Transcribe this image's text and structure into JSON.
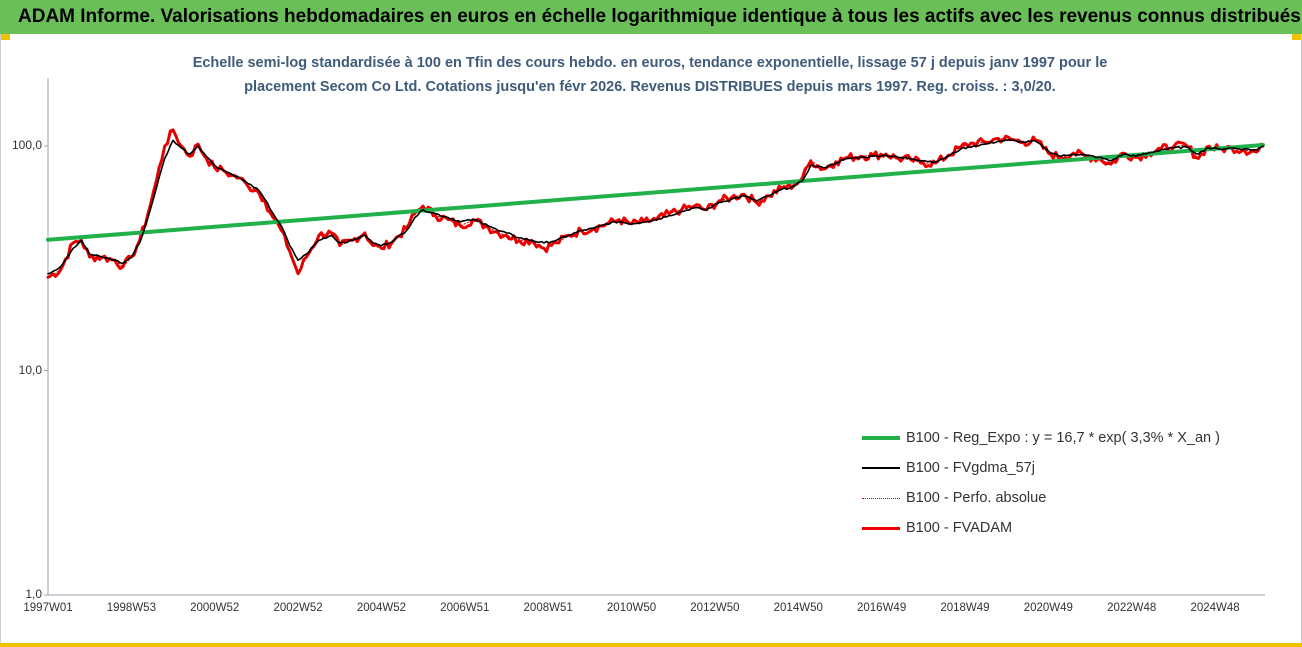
{
  "banner": {
    "title": "ADAM Informe. Valorisations hebdomadaires en euros en échelle logarithmique identique à tous les actifs avec les revenus connus distribués"
  },
  "chart_data": {
    "type": "line",
    "title_line1": "Echelle semi-log standardisée à 100 en Tfin des cours hebdo. en euros, tendance exponentielle, lissage 57 j depuis janv 1997 pour le",
    "title_line2": "placement Secom Co Ltd. Cotations jusqu'en févr 2026. Revenus DISTRIBUES depuis mars 1997. Reg. croiss. : 3,0/20.",
    "y_scale": "log",
    "ylim": [
      1,
      100
    ],
    "y_tick_labels": [
      "100,0",
      "10,0",
      "1,0"
    ],
    "y_tick_values": [
      100,
      10,
      1
    ],
    "x_range": [
      1997.0,
      2026.15
    ],
    "x_tick_labels": [
      "1997W01",
      "1998W53",
      "2000W52",
      "2002W52",
      "2004W52",
      "2006W51",
      "2008W51",
      "2010W50",
      "2012W50",
      "2014W50",
      "2016W49",
      "2018W49",
      "2020W49",
      "2022W48",
      "2024W48"
    ],
    "x_tick_values": [
      1997.0,
      1999.0,
      2001.0,
      2003.0,
      2005.0,
      2007.0,
      2009.0,
      2011.0,
      2013.0,
      2015.0,
      2017.0,
      2019.0,
      2021.0,
      2023.0,
      2025.0
    ],
    "legend_position": "bottom-right",
    "grid": false,
    "series": [
      {
        "name": "B100 - Reg_Expo : y = 16,7 * exp( 3,3% *  X_an )",
        "color": "#22b04b",
        "style": "solid",
        "x": [
          1997.0,
          2026.15
        ],
        "values": [
          38.2,
          101.0
        ]
      },
      {
        "name": "B100 - FVgdma_57j",
        "color": "#000000",
        "style": "solid",
        "x": [
          1997.0,
          1997.3,
          1997.6,
          1997.8,
          1998.0,
          1998.3,
          1998.6,
          1998.8,
          1999.0,
          1999.2,
          1999.4,
          1999.6,
          1999.8,
          2000.0,
          2000.2,
          2000.4,
          2000.6,
          2000.8,
          2001.0,
          2001.2,
          2001.4,
          2001.6,
          2001.8,
          2002.0,
          2002.2,
          2002.4,
          2002.6,
          2002.8,
          2003.0,
          2003.2,
          2003.5,
          2003.8,
          2004.0,
          2004.3,
          2004.6,
          2004.8,
          2005.0,
          2005.3,
          2005.6,
          2005.8,
          2006.0,
          2006.3,
          2006.6,
          2006.9,
          2007.2,
          2007.5,
          2007.8,
          2008.0,
          2008.3,
          2008.6,
          2008.9,
          2009.2,
          2009.5,
          2009.8,
          2010.1,
          2010.4,
          2010.7,
          2011.0,
          2011.3,
          2011.6,
          2011.9,
          2012.2,
          2012.5,
          2012.8,
          2013.1,
          2013.4,
          2013.7,
          2014.0,
          2014.3,
          2014.6,
          2014.9,
          2015.1,
          2015.3,
          2015.6,
          2015.9,
          2016.2,
          2016.5,
          2016.8,
          2017.1,
          2017.4,
          2017.7,
          2018.0,
          2018.3,
          2018.6,
          2018.9,
          2019.2,
          2019.5,
          2019.8,
          2020.1,
          2020.4,
          2020.7,
          2021.0,
          2021.3,
          2021.6,
          2021.9,
          2022.2,
          2022.5,
          2022.8,
          2023.1,
          2023.4,
          2023.7,
          2024.0,
          2024.3,
          2024.6,
          2024.8,
          2025.1,
          2025.4,
          2025.7,
          2026.0,
          2026.15
        ],
        "values": [
          27.0,
          29.0,
          35.0,
          38.0,
          33.0,
          32.0,
          31.0,
          30.0,
          32.0,
          37.0,
          48.0,
          65.0,
          88.0,
          106.0,
          98.0,
          92.0,
          100.0,
          90.0,
          82.0,
          78.0,
          75.0,
          72.0,
          68.0,
          65.0,
          58.0,
          50.0,
          44.0,
          36.0,
          31.0,
          33.0,
          38.0,
          40.0,
          37.0,
          38.0,
          40.0,
          37.0,
          36.0,
          38.0,
          42.0,
          48.0,
          52.0,
          50.0,
          48.0,
          46.0,
          47.0,
          45.0,
          42.0,
          41.0,
          39.0,
          38.0,
          37.0,
          38.0,
          40.0,
          42.0,
          43.0,
          45.0,
          46.0,
          45.0,
          46.0,
          47.0,
          49.0,
          51.0,
          53.0,
          52.0,
          56.0,
          58.0,
          60.0,
          57.0,
          60.0,
          64.0,
          66.0,
          70.0,
          82.0,
          80.0,
          84.0,
          88.0,
          89.0,
          90.0,
          91.0,
          89.0,
          88.0,
          86.0,
          85.0,
          90.0,
          97.0,
          100.0,
          102.0,
          105.0,
          106.0,
          104.0,
          105.0,
          95.0,
          90.0,
          92.0,
          91.0,
          89.0,
          86.0,
          92.0,
          90.0,
          93.0,
          96.0,
          98.0,
          99.0,
          92.0,
          98.0,
          97.0,
          98.0,
          97.0,
          96.0,
          100.0
        ]
      },
      {
        "name": "B100 - Perfo. absolue",
        "color": "#c00000",
        "style": "dotted",
        "x": [
          1997.0,
          1997.3,
          1997.6,
          1997.8,
          1998.0,
          1998.3,
          1998.6,
          1998.8,
          1999.0,
          1999.2,
          1999.4,
          1999.6,
          1999.8,
          2000.0,
          2000.2,
          2000.4,
          2000.6,
          2000.8,
          2001.0,
          2001.2,
          2001.4,
          2001.6,
          2001.8,
          2002.0,
          2002.2,
          2002.4,
          2002.6,
          2002.8,
          2003.0,
          2003.2,
          2003.5,
          2003.8,
          2004.0,
          2004.3,
          2004.6,
          2004.8,
          2005.0,
          2005.3,
          2005.6,
          2005.8,
          2006.0,
          2006.3,
          2006.6,
          2006.9,
          2007.2,
          2007.5,
          2007.8,
          2008.0,
          2008.3,
          2008.6,
          2008.9,
          2009.2,
          2009.5,
          2009.8,
          2010.1,
          2010.4,
          2010.7,
          2011.0,
          2011.3,
          2011.6,
          2011.9,
          2012.2,
          2012.5,
          2012.8,
          2013.1,
          2013.4,
          2013.7,
          2014.0,
          2014.3,
          2014.6,
          2014.9,
          2015.1,
          2015.3,
          2015.6,
          2015.9,
          2016.2,
          2016.5,
          2016.8,
          2017.1,
          2017.4,
          2017.7,
          2018.0,
          2018.3,
          2018.6,
          2018.9,
          2019.2,
          2019.5,
          2019.8,
          2020.1,
          2020.4,
          2020.7,
          2021.0,
          2021.3,
          2021.6,
          2021.9,
          2022.2,
          2022.5,
          2022.8,
          2023.1,
          2023.4,
          2023.7,
          2024.0,
          2024.3,
          2024.6,
          2024.8,
          2025.1,
          2025.4,
          2025.7,
          2026.0,
          2026.15
        ],
        "values": [
          26.0,
          28.0,
          37.0,
          38.0,
          32.0,
          32.0,
          31.0,
          29.0,
          32.0,
          38.0,
          50.0,
          70.0,
          100.0,
          118.0,
          100.0,
          90.0,
          102.0,
          88.0,
          80.0,
          78.0,
          74.0,
          72.0,
          66.0,
          64.0,
          57.0,
          48.0,
          42.0,
          34.0,
          27.0,
          32.0,
          40.0,
          41.0,
          36.0,
          38.0,
          41.0,
          36.0,
          35.0,
          38.0,
          43.0,
          50.0,
          54.0,
          49.0,
          47.0,
          44.0,
          47.0,
          44.0,
          41.0,
          40.0,
          38.0,
          38.0,
          35.0,
          37.0,
          40.0,
          42.0,
          43.0,
          45.0,
          47.0,
          45.0,
          46.0,
          47.0,
          50.0,
          52.0,
          54.0,
          52.0,
          57.0,
          59.0,
          61.0,
          56.0,
          60.0,
          65.0,
          67.0,
          72.0,
          86.0,
          79.0,
          85.0,
          89.0,
          90.0,
          91.0,
          92.0,
          88.0,
          87.0,
          84.0,
          84.0,
          91.0,
          99.0,
          103.0,
          104.0,
          108.0,
          107.0,
          104.0,
          106.0,
          93.0,
          89.0,
          93.0,
          90.0,
          88.0,
          83.0,
          93.0,
          89.0,
          93.0,
          97.0,
          99.0,
          101.0,
          88.0,
          99.0,
          97.0,
          98.0,
          96.0,
          94.0,
          100.0
        ]
      },
      {
        "name": "B100 - FVADAM",
        "color": "#ee0000",
        "style": "solid",
        "x": [
          1997.0,
          1997.3,
          1997.6,
          1997.8,
          1998.0,
          1998.3,
          1998.6,
          1998.8,
          1999.0,
          1999.2,
          1999.4,
          1999.6,
          1999.8,
          2000.0,
          2000.2,
          2000.4,
          2000.6,
          2000.8,
          2001.0,
          2001.2,
          2001.4,
          2001.6,
          2001.8,
          2002.0,
          2002.2,
          2002.4,
          2002.6,
          2002.8,
          2003.0,
          2003.2,
          2003.5,
          2003.8,
          2004.0,
          2004.3,
          2004.6,
          2004.8,
          2005.0,
          2005.3,
          2005.6,
          2005.8,
          2006.0,
          2006.3,
          2006.6,
          2006.9,
          2007.2,
          2007.5,
          2007.8,
          2008.0,
          2008.3,
          2008.6,
          2008.9,
          2009.2,
          2009.5,
          2009.8,
          2010.1,
          2010.4,
          2010.7,
          2011.0,
          2011.3,
          2011.6,
          2011.9,
          2012.2,
          2012.5,
          2012.8,
          2013.1,
          2013.4,
          2013.7,
          2014.0,
          2014.3,
          2014.6,
          2014.9,
          2015.1,
          2015.3,
          2015.6,
          2015.9,
          2016.2,
          2016.5,
          2016.8,
          2017.1,
          2017.4,
          2017.7,
          2018.0,
          2018.3,
          2018.6,
          2018.9,
          2019.2,
          2019.5,
          2019.8,
          2020.1,
          2020.4,
          2020.7,
          2021.0,
          2021.3,
          2021.6,
          2021.9,
          2022.2,
          2022.5,
          2022.8,
          2023.1,
          2023.4,
          2023.7,
          2024.0,
          2024.3,
          2024.6,
          2024.8,
          2025.1,
          2025.4,
          2025.7,
          2026.0,
          2026.15
        ],
        "values": [
          26.0,
          28.0,
          37.0,
          38.0,
          32.0,
          32.0,
          31.0,
          29.0,
          32.0,
          38.0,
          50.0,
          70.0,
          100.0,
          118.0,
          100.0,
          90.0,
          102.0,
          88.0,
          80.0,
          78.0,
          74.0,
          72.0,
          66.0,
          64.0,
          57.0,
          48.0,
          42.0,
          34.0,
          27.0,
          32.0,
          40.0,
          41.0,
          36.0,
          38.0,
          41.0,
          36.0,
          35.0,
          38.0,
          43.0,
          50.0,
          54.0,
          49.0,
          47.0,
          44.0,
          47.0,
          44.0,
          41.0,
          40.0,
          38.0,
          38.0,
          35.0,
          37.0,
          40.0,
          42.0,
          43.0,
          45.0,
          47.0,
          45.0,
          46.0,
          47.0,
          50.0,
          52.0,
          54.0,
          52.0,
          57.0,
          59.0,
          61.0,
          56.0,
          60.0,
          65.0,
          67.0,
          72.0,
          86.0,
          79.0,
          85.0,
          89.0,
          90.0,
          91.0,
          92.0,
          88.0,
          87.0,
          84.0,
          84.0,
          91.0,
          99.0,
          103.0,
          104.0,
          108.0,
          107.0,
          104.0,
          106.0,
          93.0,
          89.0,
          93.0,
          90.0,
          88.0,
          83.0,
          93.0,
          89.0,
          93.0,
          97.0,
          99.0,
          101.0,
          88.0,
          99.0,
          97.0,
          98.0,
          96.0,
          94.0,
          100.0
        ]
      }
    ],
    "legend_order": [
      0,
      1,
      2,
      3
    ]
  }
}
